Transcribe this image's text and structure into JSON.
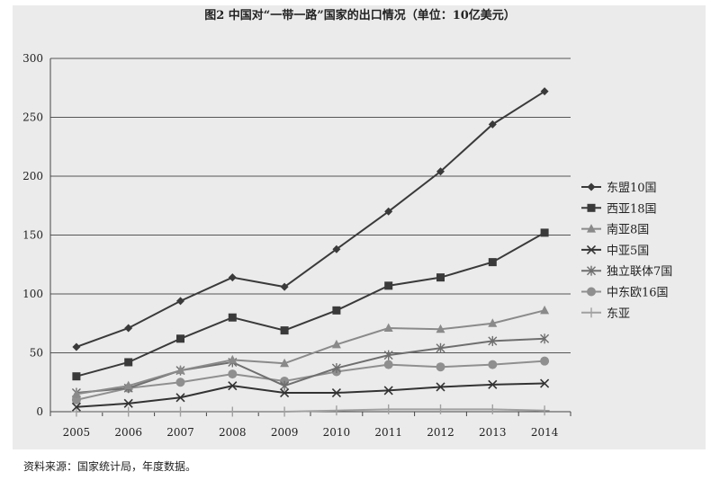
{
  "chart_data": {
    "type": "line",
    "title": "图2 中国对“一带一路”国家的出口情况（单位：10亿美元）",
    "xlabel": "",
    "ylabel": "",
    "categories": [
      "2005",
      "2006",
      "2007",
      "2008",
      "2009",
      "2010",
      "2011",
      "2012",
      "2013",
      "2014"
    ],
    "ylim": [
      0,
      300
    ],
    "yticks": [
      0,
      50,
      100,
      150,
      200,
      250,
      300
    ],
    "grid": true,
    "legend_position": "right",
    "series": [
      {
        "name": "东盟10国",
        "marker": "diamond",
        "color": "#3a3a3a",
        "values": [
          55,
          71,
          94,
          114,
          106,
          138,
          170,
          204,
          244,
          272
        ]
      },
      {
        "name": "西亚18国",
        "marker": "square",
        "color": "#3a3a3a",
        "values": [
          30,
          42,
          62,
          80,
          69,
          86,
          107,
          114,
          127,
          152
        ]
      },
      {
        "name": "南亚8国",
        "marker": "triangle",
        "color": "#8a8a8a",
        "values": [
          15,
          22,
          35,
          44,
          41,
          57,
          71,
          70,
          75,
          86
        ]
      },
      {
        "name": "中亚5国",
        "marker": "x",
        "color": "#333333",
        "values": [
          4,
          7,
          12,
          22,
          16,
          16,
          18,
          21,
          23,
          24
        ]
      },
      {
        "name": "独立联体7国",
        "marker": "star",
        "color": "#6e6e6e",
        "values": [
          16,
          20,
          35,
          42,
          22,
          37,
          48,
          54,
          60,
          62
        ]
      },
      {
        "name": "中东欧16国",
        "marker": "circle",
        "color": "#8f8f8f",
        "values": [
          10,
          20,
          25,
          32,
          26,
          34,
          40,
          38,
          40,
          43
        ]
      },
      {
        "name": "东亚",
        "marker": "plus",
        "color": "#a0a0a0",
        "values": [
          0,
          0,
          0,
          0,
          0,
          1,
          2,
          2,
          2,
          1
        ]
      }
    ]
  },
  "source_note": "资料来源：国家统计局，年度数据。"
}
